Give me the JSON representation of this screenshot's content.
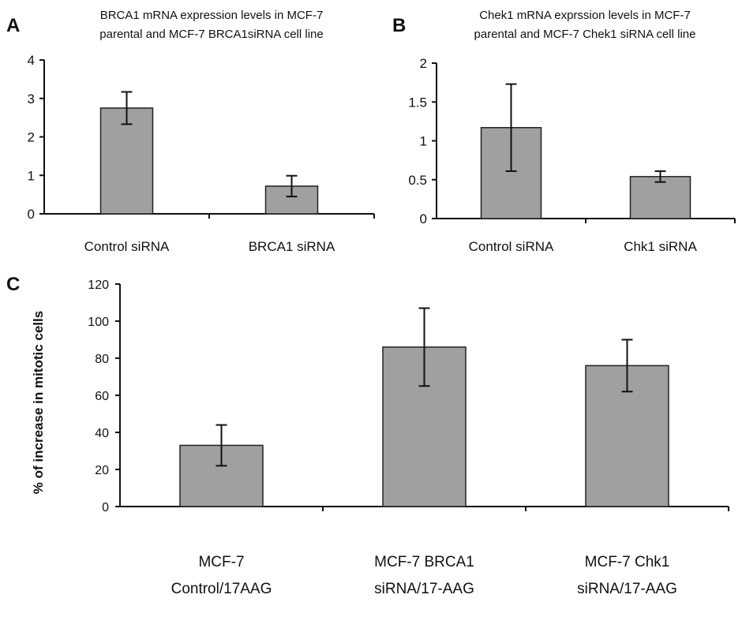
{
  "chart_data": [
    {
      "panel": "A",
      "type": "bar",
      "title_lines": [
        "BRCA1 mRNA expression levels in MCF-7",
        "parental and MCF-7 BRCA1siRNA cell line"
      ],
      "categories": [
        "Control siRNA",
        "BRCA1 siRNA"
      ],
      "values": [
        2.75,
        0.72
      ],
      "errors": [
        0.42,
        0.27
      ],
      "ylim": [
        0,
        4
      ],
      "yticks": [
        0,
        1,
        2,
        3,
        4
      ],
      "ytick_labels": [
        "0",
        "1",
        "2",
        "3",
        "4"
      ],
      "xlabel": "",
      "ylabel": ""
    },
    {
      "panel": "B",
      "type": "bar",
      "title_lines": [
        "Chek1 mRNA exprssion levels in MCF-7",
        "parental and MCF-7 Chek1 siRNA cell line"
      ],
      "categories": [
        "Control siRNA",
        "Chk1 siRNA"
      ],
      "values": [
        1.17,
        0.54
      ],
      "errors": [
        0.56,
        0.07
      ],
      "ylim": [
        0,
        2
      ],
      "yticks": [
        0,
        0.5,
        1,
        1.5,
        2
      ],
      "ytick_labels": [
        "0",
        "0.5",
        "1",
        "1.5",
        "2"
      ],
      "xlabel": "",
      "ylabel": ""
    },
    {
      "panel": "C",
      "type": "bar",
      "title_lines": [],
      "categories": [
        [
          "MCF-7",
          "Control/17AAG"
        ],
        [
          "MCF-7 BRCA1",
          "siRNA/17-AAG"
        ],
        [
          "MCF-7 Chk1",
          "siRNA/17-AAG"
        ]
      ],
      "values": [
        33,
        86,
        76
      ],
      "errors": [
        11,
        21,
        14
      ],
      "ylim": [
        0,
        120
      ],
      "yticks": [
        0,
        20,
        40,
        60,
        80,
        100,
        120
      ],
      "ytick_labels": [
        "0",
        "20",
        "40",
        "60",
        "80",
        "100",
        "120"
      ],
      "xlabel": "",
      "ylabel": "% of increase in mitotic cells"
    }
  ],
  "colors": {
    "bar_fill": "#a0a0a0",
    "bar_stroke": "#222222",
    "axis": "#111111"
  }
}
